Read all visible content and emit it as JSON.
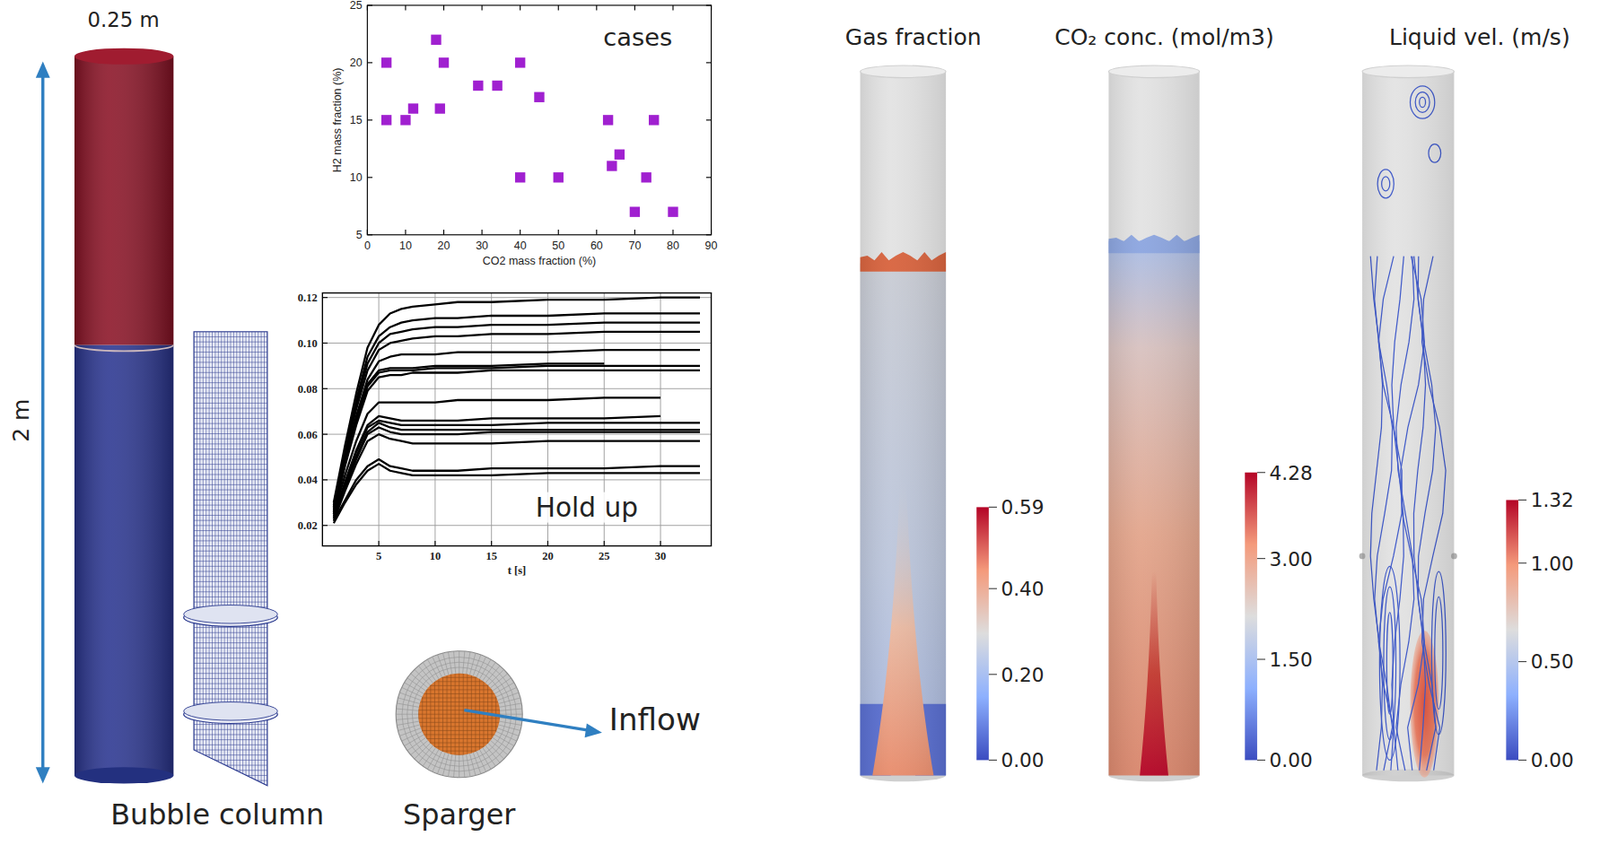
{
  "bubble_column": {
    "width_label": "0.25 m",
    "height_label": "2 m",
    "caption": "Bubble column"
  },
  "sparger": {
    "caption": "Sparger",
    "inflow_label": "Inflow"
  },
  "chart_data": [
    {
      "type": "scatter",
      "title": "cases",
      "xlabel": "CO2 mass fraction (%)",
      "ylabel": "H2 mass fraction (%)",
      "x": [
        5,
        5,
        10,
        12,
        18,
        19,
        20,
        29,
        34,
        40,
        40,
        45,
        50,
        63,
        64,
        66,
        70,
        73,
        75,
        80
      ],
      "values": [
        20,
        15,
        15,
        16,
        22,
        16,
        20,
        18,
        18,
        20,
        10,
        17,
        10,
        15,
        11,
        12,
        7,
        10,
        15,
        7
      ],
      "color": "#a020d0",
      "marker": "square",
      "xlim": [
        0,
        90
      ],
      "xticks": [
        0,
        10,
        20,
        30,
        40,
        50,
        60,
        70,
        80,
        90
      ],
      "ylim": [
        5,
        25
      ],
      "yticks": [
        5,
        10,
        15,
        20,
        25
      ]
    },
    {
      "type": "line",
      "title": "Hold up",
      "xlabel": "t [s]",
      "color": "#000000",
      "grid": true,
      "x": [
        1,
        2,
        3,
        4,
        5,
        6,
        7,
        8,
        10,
        12,
        15,
        20,
        25,
        30,
        33.5
      ],
      "series": [
        {
          "values": [
            0.03,
            0.055,
            0.078,
            0.098,
            0.108,
            0.113,
            0.115,
            0.116,
            0.117,
            0.118,
            0.118,
            0.119,
            0.119,
            0.12,
            0.12
          ]
        },
        {
          "values": [
            0.029,
            0.053,
            0.075,
            0.094,
            0.103,
            0.107,
            0.109,
            0.11,
            0.111,
            0.111,
            0.112,
            0.112,
            0.113,
            0.113,
            0.113
          ]
        },
        {
          "values": [
            0.028,
            0.052,
            0.073,
            0.091,
            0.1,
            0.104,
            0.105,
            0.106,
            0.107,
            0.107,
            0.108,
            0.108,
            0.109,
            0.109,
            0.109
          ]
        },
        {
          "values": [
            0.028,
            0.051,
            0.071,
            0.088,
            0.097,
            0.1,
            0.101,
            0.102,
            0.103,
            0.103,
            0.104,
            0.104,
            0.105,
            0.105,
            0.105
          ]
        },
        {
          "values": [
            0.027,
            0.049,
            0.068,
            0.084,
            0.092,
            0.094,
            0.095,
            0.095,
            0.095,
            0.096,
            0.096,
            0.096,
            0.097,
            0.097,
            0.097
          ]
        },
        {
          "values": [
            0.026,
            0.047,
            0.066,
            0.082,
            0.088,
            0.089,
            0.089,
            0.089,
            0.09,
            0.09,
            0.09,
            0.091,
            0.091,
            null,
            null
          ]
        },
        {
          "values": [
            0.026,
            0.047,
            0.065,
            0.081,
            0.087,
            0.088,
            0.088,
            0.088,
            0.089,
            0.089,
            0.089,
            0.09,
            0.09,
            0.09,
            0.09
          ]
        },
        {
          "values": [
            0.025,
            0.046,
            0.064,
            0.079,
            0.085,
            0.086,
            0.086,
            0.087,
            0.087,
            0.087,
            0.088,
            0.088,
            0.088,
            0.088,
            0.088
          ]
        },
        {
          "values": [
            0.025,
            0.042,
            0.057,
            0.069,
            0.074,
            0.074,
            0.074,
            0.074,
            0.074,
            0.075,
            0.075,
            0.075,
            0.076,
            0.076,
            null
          ]
        },
        {
          "values": [
            0.024,
            0.039,
            0.053,
            0.064,
            0.068,
            0.067,
            0.066,
            0.066,
            0.066,
            0.066,
            0.067,
            0.067,
            0.067,
            0.068,
            null
          ]
        },
        {
          "values": [
            0.024,
            0.038,
            0.052,
            0.063,
            0.066,
            0.065,
            0.064,
            0.064,
            0.064,
            0.064,
            0.064,
            0.065,
            0.065,
            0.065,
            0.065
          ]
        },
        {
          "values": [
            0.023,
            0.037,
            0.05,
            0.061,
            0.065,
            0.063,
            0.062,
            0.062,
            0.062,
            0.062,
            0.062,
            0.062,
            0.062,
            0.062,
            0.062
          ]
        },
        {
          "values": [
            0.023,
            0.036,
            0.049,
            0.06,
            0.063,
            0.061,
            0.06,
            0.06,
            0.06,
            0.06,
            0.061,
            0.061,
            0.061,
            0.061,
            0.061
          ]
        },
        {
          "values": [
            0.022,
            0.035,
            0.047,
            0.057,
            0.06,
            0.058,
            0.057,
            0.056,
            0.056,
            0.056,
            0.056,
            0.057,
            0.057,
            0.057,
            0.057
          ]
        },
        {
          "values": [
            0.022,
            0.031,
            0.04,
            0.046,
            0.049,
            0.046,
            0.045,
            0.044,
            0.044,
            0.044,
            0.045,
            0.045,
            0.045,
            0.046,
            0.046
          ]
        },
        {
          "values": [
            0.021,
            0.03,
            0.038,
            0.044,
            0.047,
            0.044,
            0.043,
            0.042,
            0.042,
            0.042,
            0.042,
            0.043,
            0.043,
            0.043,
            0.043
          ]
        }
      ],
      "xlim": [
        0,
        34.5
      ],
      "xticks": [
        5,
        10,
        15,
        20,
        25,
        30
      ],
      "ylim": [
        0.011,
        0.122
      ],
      "yticks": [
        0.02,
        0.04,
        0.06,
        0.08,
        {
          "value": 0.1,
          "label": "0.10"
        },
        0.12
      ]
    }
  ],
  "fields": [
    {
      "title": "Gas fraction",
      "colorbar_range": [
        0,
        0.59
      ],
      "colorbar_ticks": [
        {
          "value": 0,
          "label": "0.00"
        },
        {
          "value": 0.2,
          "label": "0.20"
        },
        {
          "value": 0.4,
          "label": "0.40"
        },
        0.59
      ]
    },
    {
      "title": "CO₂ conc. (mol/m3)",
      "colorbar_range": [
        0,
        4.28
      ],
      "colorbar_ticks": [
        {
          "value": 0,
          "label": "0.00"
        },
        {
          "value": 1.5,
          "label": "1.50"
        },
        {
          "value": 3,
          "label": "3.00"
        },
        4.28
      ]
    },
    {
      "title": "Liquid vel. (m/s)",
      "colorbar_range": [
        0,
        1.32
      ],
      "colorbar_ticks": [
        {
          "value": 0,
          "label": "0.00"
        },
        {
          "value": 0.5,
          "label": "0.50"
        },
        {
          "value": 1,
          "label": "1.00"
        },
        1.32
      ]
    }
  ]
}
